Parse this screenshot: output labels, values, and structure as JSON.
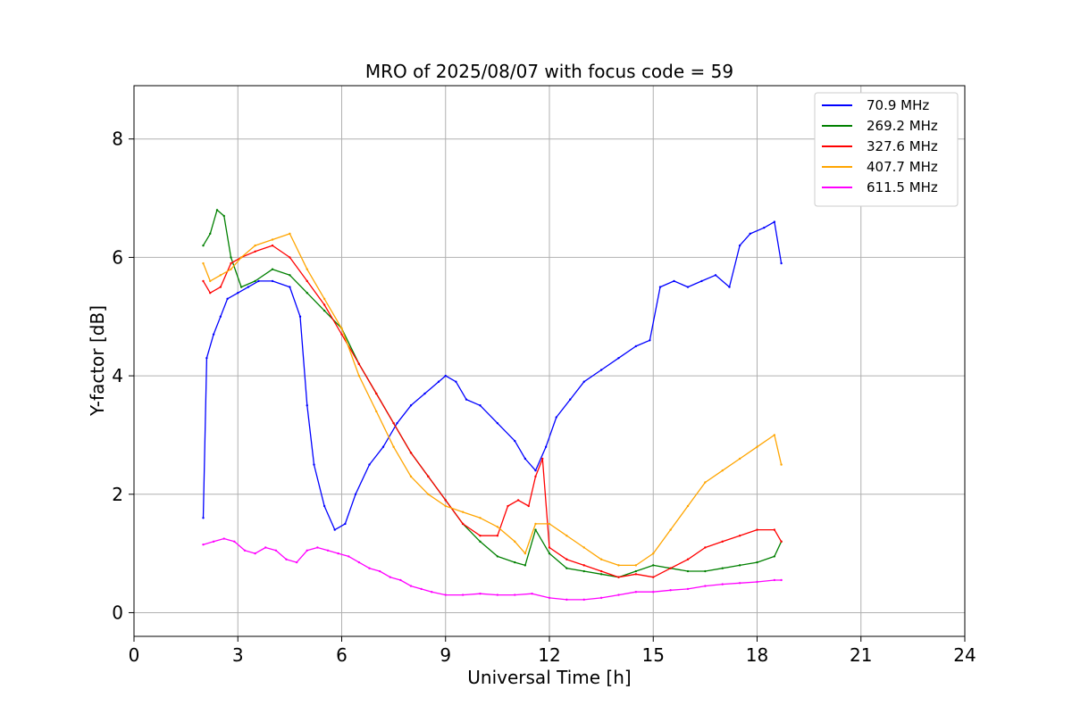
{
  "chart_data": {
    "type": "line",
    "title": "MRO of 2025/08/07 with focus code = 59",
    "xlabel": "Universal Time [h]",
    "ylabel": "Y-factor [dB]",
    "xlim": [
      0,
      24
    ],
    "ylim": [
      -0.4,
      8.9
    ],
    "xticks": [
      0,
      3,
      6,
      9,
      12,
      15,
      18,
      21,
      24
    ],
    "yticks": [
      0,
      2,
      4,
      6,
      8
    ],
    "grid": true,
    "legend_position": "top-right",
    "series": [
      {
        "name": " 70.9 MHz",
        "color": "#0000ff",
        "x": [
          2.0,
          2.1,
          2.3,
          2.5,
          2.7,
          3.0,
          3.3,
          3.6,
          4.0,
          4.5,
          4.8,
          5.0,
          5.2,
          5.5,
          5.8,
          6.1,
          6.4,
          6.8,
          7.2,
          7.6,
          8.0,
          8.4,
          8.8,
          9.0,
          9.3,
          9.6,
          10.0,
          10.5,
          11.0,
          11.3,
          11.6,
          11.9,
          12.2,
          12.6,
          13.0,
          13.5,
          14.0,
          14.5,
          14.9,
          15.2,
          15.6,
          16.0,
          16.4,
          16.8,
          17.2,
          17.5,
          17.8,
          18.2,
          18.5,
          18.7
        ],
        "y": [
          1.6,
          4.3,
          4.7,
          5.0,
          5.3,
          5.4,
          5.5,
          5.6,
          5.6,
          5.5,
          5.0,
          3.5,
          2.5,
          1.8,
          1.4,
          1.5,
          2.0,
          2.5,
          2.8,
          3.2,
          3.5,
          3.7,
          3.9,
          4.0,
          3.9,
          3.6,
          3.5,
          3.2,
          2.9,
          2.6,
          2.4,
          2.8,
          3.3,
          3.6,
          3.9,
          4.1,
          4.3,
          4.5,
          4.6,
          5.5,
          5.6,
          5.5,
          5.6,
          5.7,
          5.5,
          6.2,
          6.4,
          6.5,
          6.6,
          5.9
        ]
      },
      {
        "name": "269.2 MHz",
        "color": "#008000",
        "x": [
          2.0,
          2.2,
          2.4,
          2.6,
          2.8,
          3.1,
          3.5,
          4.0,
          4.5,
          5.0,
          5.5,
          6.0,
          6.5,
          7.0,
          7.5,
          8.0,
          8.5,
          9.0,
          9.5,
          10.0,
          10.5,
          11.0,
          11.3,
          11.6,
          12.0,
          12.5,
          13.0,
          13.5,
          14.0,
          14.5,
          15.0,
          15.5,
          16.0,
          16.5,
          17.0,
          17.5,
          18.0,
          18.5,
          18.7
        ],
        "y": [
          6.2,
          6.4,
          6.8,
          6.7,
          6.0,
          5.5,
          5.6,
          5.8,
          5.7,
          5.4,
          5.1,
          4.8,
          4.2,
          3.7,
          3.2,
          2.7,
          2.3,
          1.9,
          1.5,
          1.2,
          0.95,
          0.85,
          0.8,
          1.4,
          1.0,
          0.75,
          0.7,
          0.65,
          0.6,
          0.7,
          0.8,
          0.75,
          0.7,
          0.7,
          0.75,
          0.8,
          0.85,
          0.95,
          1.2
        ]
      },
      {
        "name": "327.6 MHz",
        "color": "#ff0000",
        "x": [
          2.0,
          2.2,
          2.5,
          2.8,
          3.1,
          3.5,
          4.0,
          4.5,
          5.0,
          5.5,
          6.0,
          6.5,
          7.0,
          7.5,
          8.0,
          8.5,
          9.0,
          9.5,
          10.0,
          10.5,
          10.8,
          11.1,
          11.4,
          11.6,
          11.8,
          12.0,
          12.5,
          13.0,
          13.5,
          14.0,
          14.5,
          15.0,
          15.5,
          16.0,
          16.5,
          17.0,
          17.5,
          18.0,
          18.5,
          18.7
        ],
        "y": [
          5.6,
          5.4,
          5.5,
          5.9,
          6.0,
          6.1,
          6.2,
          6.0,
          5.6,
          5.2,
          4.7,
          4.2,
          3.7,
          3.2,
          2.7,
          2.3,
          1.9,
          1.5,
          1.3,
          1.3,
          1.8,
          1.9,
          1.8,
          2.3,
          2.6,
          1.1,
          0.9,
          0.8,
          0.7,
          0.6,
          0.65,
          0.6,
          0.75,
          0.9,
          1.1,
          1.2,
          1.3,
          1.4,
          1.4,
          1.2
        ]
      },
      {
        "name": "407.7 MHz",
        "color": "#ffa500",
        "x": [
          2.0,
          2.2,
          2.5,
          2.8,
          3.1,
          3.5,
          4.0,
          4.5,
          5.0,
          5.5,
          6.0,
          6.5,
          7.0,
          7.5,
          8.0,
          8.5,
          9.0,
          9.5,
          10.0,
          10.5,
          11.0,
          11.3,
          11.6,
          12.0,
          12.5,
          13.0,
          13.5,
          14.0,
          14.5,
          15.0,
          15.5,
          16.0,
          16.5,
          17.0,
          17.5,
          18.0,
          18.5,
          18.7
        ],
        "y": [
          5.9,
          5.6,
          5.7,
          5.8,
          6.0,
          6.2,
          6.3,
          6.4,
          5.8,
          5.3,
          4.8,
          4.0,
          3.4,
          2.8,
          2.3,
          2.0,
          1.8,
          1.7,
          1.6,
          1.45,
          1.2,
          1.0,
          1.5,
          1.5,
          1.3,
          1.1,
          0.9,
          0.8,
          0.8,
          1.0,
          1.4,
          1.8,
          2.2,
          2.4,
          2.6,
          2.8,
          3.0,
          2.5
        ]
      },
      {
        "name": "611.5 MHz",
        "color": "#ff00ff",
        "x": [
          2.0,
          2.3,
          2.6,
          2.9,
          3.2,
          3.5,
          3.8,
          4.1,
          4.4,
          4.7,
          5.0,
          5.3,
          5.6,
          5.9,
          6.2,
          6.5,
          6.8,
          7.1,
          7.4,
          7.7,
          8.0,
          8.3,
          8.6,
          9.0,
          9.5,
          10.0,
          10.5,
          11.0,
          11.5,
          12.0,
          12.5,
          13.0,
          13.5,
          14.0,
          14.5,
          15.0,
          15.5,
          16.0,
          16.5,
          17.0,
          17.5,
          18.0,
          18.5,
          18.7
        ],
        "y": [
          1.15,
          1.2,
          1.25,
          1.2,
          1.05,
          1.0,
          1.1,
          1.05,
          0.9,
          0.85,
          1.05,
          1.1,
          1.05,
          1.0,
          0.95,
          0.85,
          0.75,
          0.7,
          0.6,
          0.55,
          0.45,
          0.4,
          0.35,
          0.3,
          0.3,
          0.32,
          0.3,
          0.3,
          0.32,
          0.25,
          0.22,
          0.22,
          0.25,
          0.3,
          0.35,
          0.35,
          0.38,
          0.4,
          0.45,
          0.48,
          0.5,
          0.52,
          0.55,
          0.55
        ]
      }
    ]
  }
}
